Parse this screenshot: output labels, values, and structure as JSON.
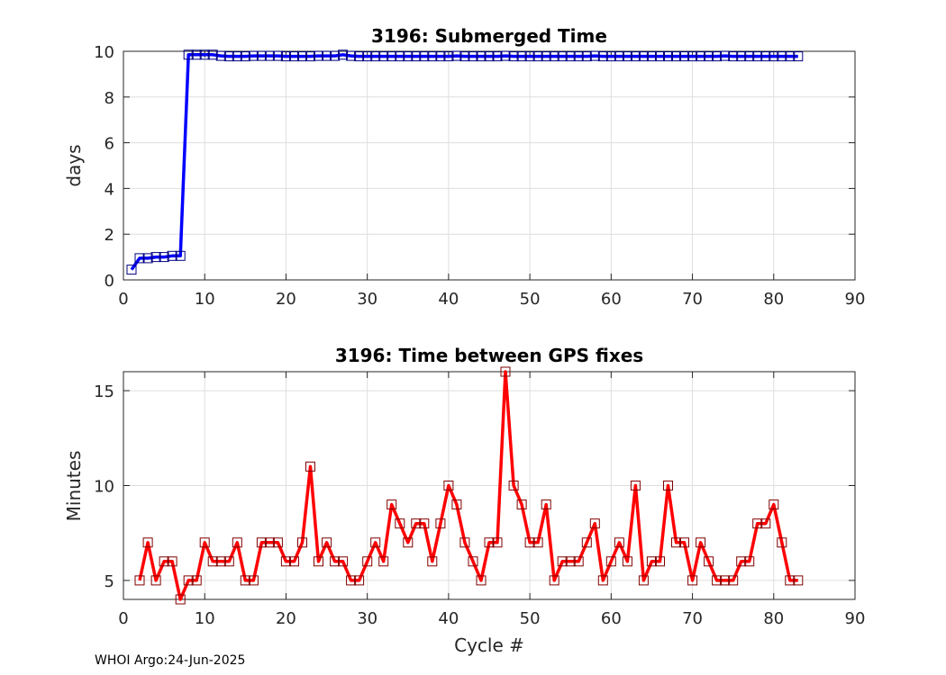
{
  "chart_data": [
    {
      "type": "line",
      "title": "3196: Submerged Time",
      "xlabel": "",
      "ylabel": "days",
      "xlim": [
        0,
        90
      ],
      "ylim": [
        0,
        10
      ],
      "xticks": [
        0,
        10,
        20,
        30,
        40,
        50,
        60,
        70,
        80,
        90
      ],
      "yticks": [
        0,
        2,
        4,
        6,
        8,
        10
      ],
      "grid": true,
      "color": "#0000ff",
      "marker": "square",
      "x": [
        1,
        2,
        3,
        4,
        5,
        6,
        7,
        8,
        9,
        10,
        11,
        12,
        13,
        14,
        15,
        16,
        17,
        18,
        19,
        20,
        21,
        22,
        23,
        24,
        25,
        26,
        27,
        28,
        29,
        30,
        31,
        32,
        33,
        34,
        35,
        36,
        37,
        38,
        39,
        40,
        41,
        42,
        43,
        44,
        45,
        46,
        47,
        48,
        49,
        50,
        51,
        52,
        53,
        54,
        55,
        56,
        57,
        58,
        59,
        60,
        61,
        62,
        63,
        64,
        65,
        66,
        67,
        68,
        69,
        70,
        71,
        72,
        73,
        74,
        75,
        76,
        77,
        78,
        79,
        80,
        81,
        82,
        83
      ],
      "y": [
        0.45,
        0.95,
        0.95,
        1.0,
        1.0,
        1.05,
        1.05,
        9.85,
        9.85,
        9.85,
        9.85,
        9.8,
        9.78,
        9.78,
        9.78,
        9.8,
        9.8,
        9.8,
        9.8,
        9.78,
        9.78,
        9.78,
        9.78,
        9.8,
        9.8,
        9.8,
        9.85,
        9.8,
        9.78,
        9.78,
        9.78,
        9.78,
        9.78,
        9.78,
        9.78,
        9.78,
        9.78,
        9.78,
        9.78,
        9.78,
        9.8,
        9.78,
        9.78,
        9.78,
        9.78,
        9.78,
        9.8,
        9.78,
        9.78,
        9.78,
        9.78,
        9.78,
        9.78,
        9.78,
        9.78,
        9.78,
        9.78,
        9.8,
        9.78,
        9.78,
        9.78,
        9.78,
        9.78,
        9.78,
        9.78,
        9.78,
        9.78,
        9.78,
        9.78,
        9.78,
        9.78,
        9.78,
        9.78,
        9.8,
        9.78,
        9.78,
        9.78,
        9.78,
        9.78,
        9.78,
        9.78,
        9.78,
        9.78
      ]
    },
    {
      "type": "line",
      "title": "3196: Time between GPS fixes",
      "xlabel": "Cycle #",
      "ylabel": "Minutes",
      "xlim": [
        0,
        90
      ],
      "ylim": [
        4,
        16
      ],
      "xticks": [
        0,
        10,
        20,
        30,
        40,
        50,
        60,
        70,
        80,
        90
      ],
      "yticks": [
        5,
        10,
        15
      ],
      "grid": true,
      "color": "#ff0000",
      "marker": "square",
      "x": [
        2,
        3,
        4,
        5,
        6,
        7,
        8,
        9,
        10,
        11,
        12,
        13,
        14,
        15,
        16,
        17,
        18,
        19,
        20,
        21,
        22,
        23,
        24,
        25,
        26,
        27,
        28,
        29,
        30,
        31,
        32,
        33,
        34,
        35,
        36,
        37,
        38,
        39,
        40,
        41,
        42,
        43,
        44,
        45,
        46,
        47,
        48,
        49,
        50,
        51,
        52,
        53,
        54,
        55,
        56,
        57,
        58,
        59,
        60,
        61,
        62,
        63,
        64,
        65,
        66,
        67,
        68,
        69,
        70,
        71,
        72,
        73,
        74,
        75,
        76,
        77,
        78,
        79,
        80,
        81,
        82,
        83
      ],
      "y": [
        5,
        7,
        5,
        6,
        6,
        4,
        5,
        5,
        7,
        6,
        6,
        6,
        7,
        5,
        5,
        7,
        7,
        7,
        6,
        6,
        7,
        11,
        6,
        7,
        6,
        6,
        5,
        5,
        6,
        7,
        6,
        9,
        8,
        7,
        8,
        8,
        6,
        8,
        10,
        9,
        7,
        6,
        5,
        7,
        7,
        16,
        10,
        9,
        7,
        7,
        9,
        5,
        6,
        6,
        6,
        7,
        8,
        5,
        6,
        7,
        6,
        10,
        5,
        6,
        6,
        10,
        7,
        7,
        5,
        7,
        6,
        5,
        5,
        5,
        6,
        6,
        8,
        8,
        9,
        7,
        5,
        5
      ]
    }
  ],
  "footer": {
    "text": "WHOI Argo:24-Jun-2025"
  }
}
